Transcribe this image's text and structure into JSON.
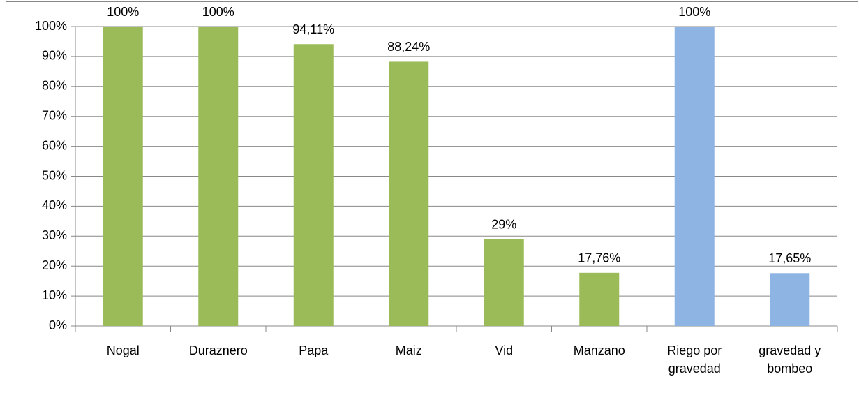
{
  "chart_data": {
    "type": "bar",
    "categories": [
      "Nogal",
      "Duraznero",
      "Papa",
      "Maiz",
      "Vid",
      "Manzano",
      "Riego por gravedad",
      "gravedad y bombeo"
    ],
    "values": [
      100,
      100,
      94.11,
      88.24,
      29,
      17.76,
      100,
      17.65
    ],
    "value_labels": [
      "100%",
      "100%",
      "94,11%",
      "88,24%",
      "29%",
      "17,76%",
      "100%",
      "17,65%"
    ],
    "colors": [
      "#9bbb59",
      "#9bbb59",
      "#9bbb59",
      "#9bbb59",
      "#9bbb59",
      "#9bbb59",
      "#8eb4e3",
      "#8eb4e3"
    ],
    "ylim": [
      0,
      100
    ],
    "yticks": [
      {
        "value": 0,
        "label": "0%"
      },
      {
        "value": 10,
        "label": "10%"
      },
      {
        "value": 20,
        "label": "20%"
      },
      {
        "value": 30,
        "label": "30%"
      },
      {
        "value": 40,
        "label": "40%"
      },
      {
        "value": 50,
        "label": "50%"
      },
      {
        "value": 60,
        "label": "60%"
      },
      {
        "value": 70,
        "label": "70%"
      },
      {
        "value": 80,
        "label": "80%"
      },
      {
        "value": 90,
        "label": "90%"
      },
      {
        "value": 100,
        "label": "100%"
      }
    ],
    "grid": true
  }
}
